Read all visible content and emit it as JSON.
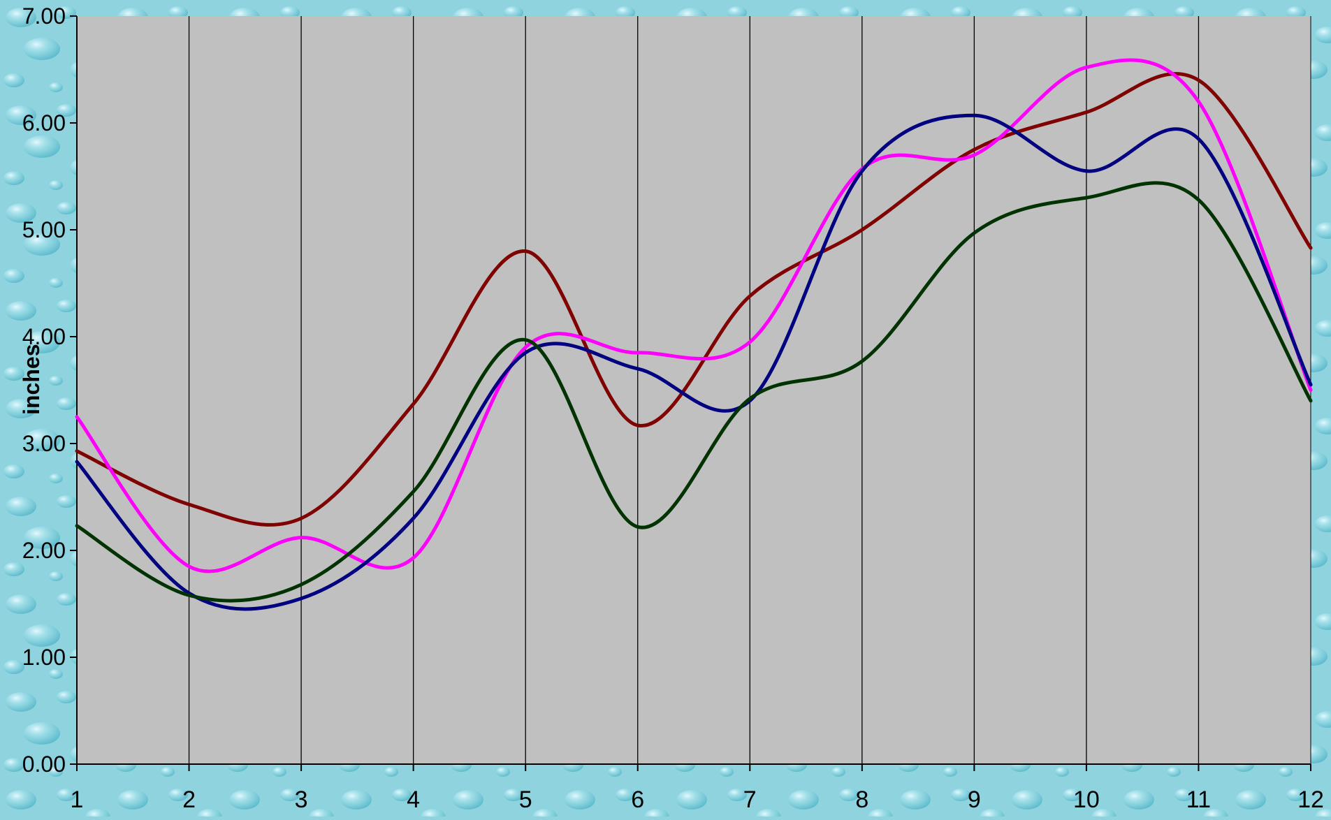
{
  "colors": {
    "background": "#8fd3df",
    "plot_area": "#c0c0c0",
    "grid": "#000000",
    "axis": "#000000"
  },
  "chart_data": {
    "type": "line",
    "title": "",
    "xlabel": "",
    "ylabel": "inches",
    "x": [
      1,
      2,
      3,
      4,
      5,
      6,
      7,
      8,
      9,
      10,
      11,
      12
    ],
    "x_ticks": [
      "1",
      "2",
      "3",
      "4",
      "5",
      "6",
      "7",
      "8",
      "9",
      "10",
      "11",
      "12"
    ],
    "y_ticks": [
      "0.00",
      "1.00",
      "2.00",
      "3.00",
      "4.00",
      "5.00",
      "6.00",
      "7.00"
    ],
    "xlim": [
      1,
      12
    ],
    "ylim": [
      0,
      7
    ],
    "grid": "vertical-at-x-ticks",
    "legend": "none",
    "series": [
      {
        "color": "#800000",
        "values": [
          2.93,
          2.43,
          2.3,
          3.37,
          4.8,
          3.17,
          4.38,
          5.0,
          5.75,
          6.1,
          6.4,
          4.83
        ]
      },
      {
        "color": "#ff00ff",
        "values": [
          3.25,
          1.85,
          2.12,
          1.93,
          3.9,
          3.85,
          3.95,
          5.57,
          5.7,
          6.52,
          6.2,
          3.5
        ]
      },
      {
        "color": "#000080",
        "values": [
          2.83,
          1.6,
          1.55,
          2.3,
          3.85,
          3.7,
          3.4,
          5.55,
          6.07,
          5.55,
          5.85,
          3.55
        ]
      },
      {
        "color": "#003300",
        "values": [
          2.23,
          1.58,
          1.68,
          2.55,
          3.97,
          2.22,
          3.42,
          3.77,
          4.97,
          5.3,
          5.28,
          3.4
        ]
      }
    ]
  }
}
